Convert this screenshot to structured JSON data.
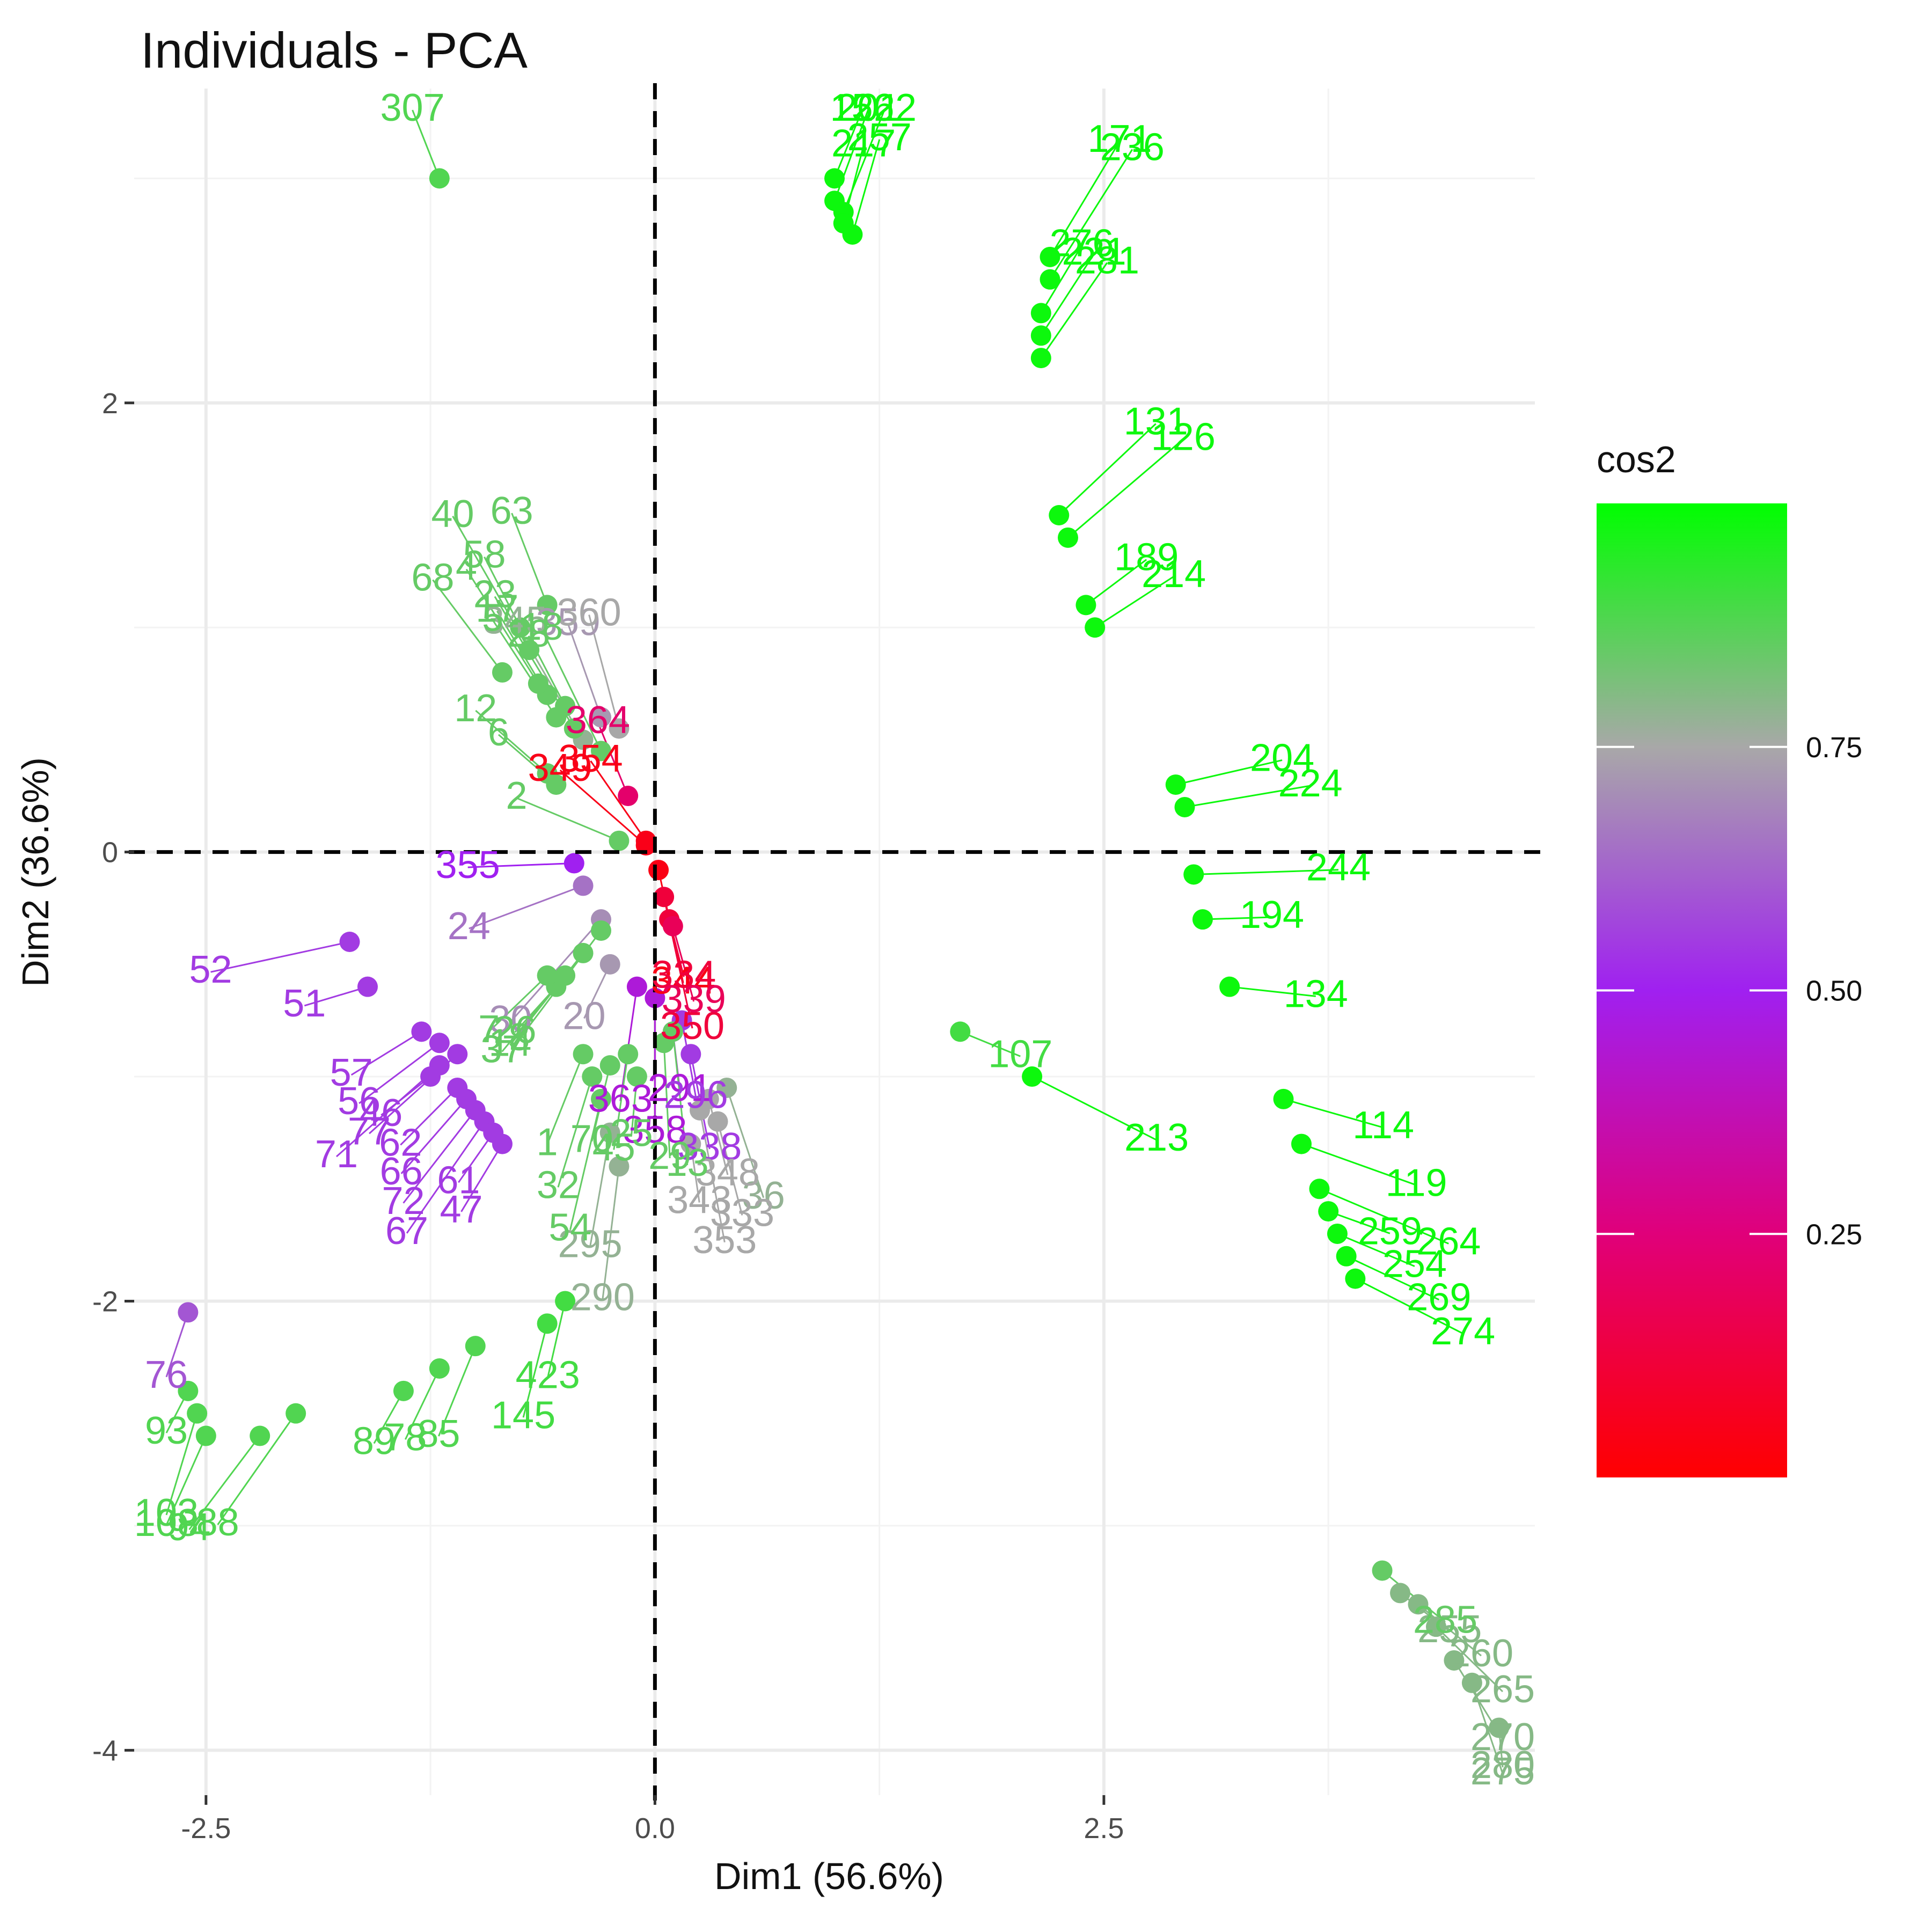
{
  "chart_data": {
    "type": "scatter",
    "title": "Individuals - PCA",
    "xlabel": "Dim1 (56.6%)",
    "ylabel": "Dim2 (36.6%)",
    "xlim": [
      -2.9,
      4.9
    ],
    "ylim": [
      -4.2,
      3.4
    ],
    "xticks": [
      -2.5,
      0.0,
      2.5
    ],
    "xtick_labels": [
      "-2.5",
      "0.0",
      "2.5"
    ],
    "yticks": [
      -4,
      -2,
      0,
      2
    ],
    "ytick_labels": [
      "-4",
      "-2",
      "0",
      "2"
    ],
    "grid": true,
    "reference_lines": {
      "x": 0,
      "y": 0,
      "style": "dashed"
    },
    "legend": {
      "title": "cos2",
      "position": "right",
      "type": "colorbar",
      "range": [
        0,
        1
      ],
      "ticks": [
        0.25,
        0.5,
        0.75
      ],
      "tick_labels": [
        "0.25",
        "0.50",
        "0.75"
      ],
      "colors": {
        "low": "#ff0000",
        "mid": "#a020f0",
        "mid_high": "#a8a8a8",
        "high": "#00ff00"
      }
    },
    "points": [
      {
        "id": "364",
        "x": -0.15,
        "y": 0.25,
        "cos2": 0.22
      },
      {
        "id": "354",
        "x": -0.05,
        "y": 0.05,
        "cos2": 0.05
      },
      {
        "id": "349",
        "x": -0.05,
        "y": 0.03,
        "cos2": 0.05
      },
      {
        "id": "344",
        "x": 0.02,
        "y": -0.08,
        "cos2": 0.04
      },
      {
        "id": "350",
        "x": 0.05,
        "y": -0.2,
        "cos2": 0.12
      },
      {
        "id": "334",
        "x": 0.08,
        "y": -0.3,
        "cos2": 0.12
      },
      {
        "id": "339",
        "x": 0.1,
        "y": -0.33,
        "cos2": 0.18
      },
      {
        "id": "355",
        "x": -0.45,
        "y": -0.05,
        "cos2": 0.5
      },
      {
        "id": "363",
        "x": -0.1,
        "y": -0.6,
        "cos2": 0.45
      },
      {
        "id": "358",
        "x": 0.0,
        "y": -0.65,
        "cos2": 0.45
      },
      {
        "id": "291",
        "x": 0.1,
        "y": -0.8,
        "cos2": 0.45
      },
      {
        "id": "296",
        "x": 0.15,
        "y": -0.75,
        "cos2": 0.55
      },
      {
        "id": "338",
        "x": 0.2,
        "y": -0.9,
        "cos2": 0.55
      },
      {
        "id": "24",
        "x": -0.4,
        "y": -0.15,
        "cos2": 0.65
      },
      {
        "id": "30",
        "x": -0.3,
        "y": -0.3,
        "cos2": 0.7
      },
      {
        "id": "20",
        "x": -0.25,
        "y": -0.5,
        "cos2": 0.72
      },
      {
        "id": "359",
        "x": -0.3,
        "y": 0.6,
        "cos2": 0.72
      },
      {
        "id": "360",
        "x": -0.2,
        "y": 0.55,
        "cos2": 0.75
      },
      {
        "id": "345",
        "x": -0.4,
        "y": 0.5,
        "cos2": 0.78
      },
      {
        "id": "52",
        "x": -1.7,
        "y": -0.4,
        "cos2": 0.55
      },
      {
        "id": "51",
        "x": -1.6,
        "y": -0.6,
        "cos2": 0.55
      },
      {
        "id": "57",
        "x": -1.3,
        "y": -0.8,
        "cos2": 0.55
      },
      {
        "id": "56",
        "x": -1.2,
        "y": -0.85,
        "cos2": 0.55
      },
      {
        "id": "77",
        "x": -1.1,
        "y": -0.9,
        "cos2": 0.55
      },
      {
        "id": "71",
        "x": -1.2,
        "y": -0.95,
        "cos2": 0.55
      },
      {
        "id": "46",
        "x": -1.25,
        "y": -1.0,
        "cos2": 0.55
      },
      {
        "id": "62",
        "x": -1.1,
        "y": -1.05,
        "cos2": 0.55
      },
      {
        "id": "66",
        "x": -1.05,
        "y": -1.1,
        "cos2": 0.55
      },
      {
        "id": "72",
        "x": -1.0,
        "y": -1.15,
        "cos2": 0.55
      },
      {
        "id": "67",
        "x": -0.95,
        "y": -1.2,
        "cos2": 0.55
      },
      {
        "id": "61",
        "x": -0.9,
        "y": -1.25,
        "cos2": 0.55
      },
      {
        "id": "47",
        "x": -0.85,
        "y": -1.3,
        "cos2": 0.55
      },
      {
        "id": "76",
        "x": -2.6,
        "y": -2.05,
        "cos2": 0.6
      },
      {
        "id": "36",
        "x": 0.4,
        "y": -1.05,
        "cos2": 0.78
      },
      {
        "id": "353",
        "x": 0.25,
        "y": -1.15,
        "cos2": 0.75
      },
      {
        "id": "343",
        "x": 0.2,
        "y": -1.3,
        "cos2": 0.75
      },
      {
        "id": "348",
        "x": 0.3,
        "y": -1.1,
        "cos2": 0.75
      },
      {
        "id": "333",
        "x": 0.35,
        "y": -1.2,
        "cos2": 0.75
      },
      {
        "id": "295",
        "x": -0.25,
        "y": -1.25,
        "cos2": 0.78
      },
      {
        "id": "290",
        "x": -0.2,
        "y": -1.4,
        "cos2": 0.78
      },
      {
        "id": "255",
        "x": 4.15,
        "y": -3.3,
        "cos2": 0.8
      },
      {
        "id": "260",
        "x": 4.25,
        "y": -3.35,
        "cos2": 0.8
      },
      {
        "id": "265",
        "x": 4.35,
        "y": -3.45,
        "cos2": 0.8
      },
      {
        "id": "270",
        "x": 4.45,
        "y": -3.6,
        "cos2": 0.8
      },
      {
        "id": "275",
        "x": 4.55,
        "y": -3.7,
        "cos2": 0.8
      },
      {
        "id": "280",
        "x": 4.7,
        "y": -3.9,
        "cos2": 0.8
      },
      {
        "id": "285",
        "x": 4.05,
        "y": -3.2,
        "cos2": 0.85
      },
      {
        "id": "1",
        "x": -0.4,
        "y": -0.9,
        "cos2": 0.85
      },
      {
        "id": "32",
        "x": -0.35,
        "y": -1.0,
        "cos2": 0.85
      },
      {
        "id": "54",
        "x": -0.3,
        "y": -1.1,
        "cos2": 0.85
      },
      {
        "id": "25",
        "x": -0.1,
        "y": -1.0,
        "cos2": 0.85
      },
      {
        "id": "70",
        "x": -0.25,
        "y": -0.95,
        "cos2": 0.85
      },
      {
        "id": "45",
        "x": -0.15,
        "y": -0.9,
        "cos2": 0.85
      },
      {
        "id": "29",
        "x": 0.05,
        "y": -0.85,
        "cos2": 0.85
      },
      {
        "id": "13",
        "x": 0.1,
        "y": -0.8,
        "cos2": 0.85
      },
      {
        "id": "26",
        "x": -0.55,
        "y": -0.6,
        "cos2": 0.85
      },
      {
        "id": "7",
        "x": -0.6,
        "y": -0.55,
        "cos2": 0.85
      },
      {
        "id": "37",
        "x": -0.5,
        "y": -0.55,
        "cos2": 0.85
      },
      {
        "id": "14",
        "x": -0.4,
        "y": -0.45,
        "cos2": 0.85
      },
      {
        "id": "8",
        "x": -0.3,
        "y": -0.35,
        "cos2": 0.85
      },
      {
        "id": "6",
        "x": -0.55,
        "y": 0.3,
        "cos2": 0.85
      },
      {
        "id": "12",
        "x": -0.6,
        "y": 0.35,
        "cos2": 0.85
      },
      {
        "id": "2",
        "x": -0.2,
        "y": 0.05,
        "cos2": 0.85
      },
      {
        "id": "18",
        "x": -0.3,
        "y": 0.45,
        "cos2": 0.85
      },
      {
        "id": "23",
        "x": -0.45,
        "y": 0.55,
        "cos2": 0.85
      },
      {
        "id": "28",
        "x": -0.5,
        "y": 0.65,
        "cos2": 0.85
      },
      {
        "id": "17",
        "x": -0.6,
        "y": 0.7,
        "cos2": 0.85
      },
      {
        "id": "5",
        "x": -0.55,
        "y": 0.6,
        "cos2": 0.85
      },
      {
        "id": "4",
        "x": -0.65,
        "y": 0.75,
        "cos2": 0.85
      },
      {
        "id": "40",
        "x": -0.7,
        "y": 0.9,
        "cos2": 0.85
      },
      {
        "id": "58",
        "x": -0.75,
        "y": 1.0,
        "cos2": 0.85
      },
      {
        "id": "63",
        "x": -0.6,
        "y": 1.1,
        "cos2": 0.85
      },
      {
        "id": "68",
        "x": -0.85,
        "y": 0.8,
        "cos2": 0.85
      },
      {
        "id": "171",
        "x": 2.2,
        "y": 2.65,
        "cos2": 0.98
      },
      {
        "id": "236",
        "x": 2.2,
        "y": 2.55,
        "cos2": 0.98
      },
      {
        "id": "276",
        "x": 2.15,
        "y": 2.4,
        "cos2": 0.98
      },
      {
        "id": "221",
        "x": 2.15,
        "y": 2.3,
        "cos2": 0.98
      },
      {
        "id": "281",
        "x": 2.15,
        "y": 2.2,
        "cos2": 0.98
      },
      {
        "id": "131",
        "x": 2.25,
        "y": 1.5,
        "cos2": 0.98
      },
      {
        "id": "126",
        "x": 2.3,
        "y": 1.4,
        "cos2": 0.98
      },
      {
        "id": "189",
        "x": 2.4,
        "y": 1.1,
        "cos2": 0.98
      },
      {
        "id": "214",
        "x": 2.45,
        "y": 1.0,
        "cos2": 0.98
      },
      {
        "id": "204",
        "x": 2.9,
        "y": 0.3,
        "cos2": 0.98
      },
      {
        "id": "224",
        "x": 2.95,
        "y": 0.2,
        "cos2": 0.98
      },
      {
        "id": "244",
        "x": 3.0,
        "y": -0.1,
        "cos2": 0.98
      },
      {
        "id": "194",
        "x": 3.05,
        "y": -0.3,
        "cos2": 0.98
      },
      {
        "id": "134",
        "x": 3.2,
        "y": -0.6,
        "cos2": 0.98
      },
      {
        "id": "114",
        "x": 3.5,
        "y": -1.1,
        "cos2": 0.98
      },
      {
        "id": "119",
        "x": 3.6,
        "y": -1.3,
        "cos2": 0.98
      },
      {
        "id": "264",
        "x": 3.7,
        "y": -1.5,
        "cos2": 0.98
      },
      {
        "id": "259",
        "x": 3.75,
        "y": -1.6,
        "cos2": 0.98
      },
      {
        "id": "254",
        "x": 3.8,
        "y": -1.7,
        "cos2": 0.98
      },
      {
        "id": "269",
        "x": 3.85,
        "y": -1.8,
        "cos2": 0.98
      },
      {
        "id": "274",
        "x": 3.9,
        "y": -1.9,
        "cos2": 0.98
      },
      {
        "id": "213",
        "x": 2.1,
        "y": -1.0,
        "cos2": 0.98
      },
      {
        "id": "107",
        "x": 1.7,
        "y": -0.8,
        "cos2": 0.9
      },
      {
        "id": "423",
        "x": -0.5,
        "y": -2.0,
        "cos2": 0.9
      },
      {
        "id": "145",
        "x": -0.6,
        "y": -2.1,
        "cos2": 0.9
      },
      {
        "id": "94",
        "x": -2.2,
        "y": -2.6,
        "cos2": 0.88
      },
      {
        "id": "88",
        "x": -2.0,
        "y": -2.5,
        "cos2": 0.88
      },
      {
        "id": "89",
        "x": -1.4,
        "y": -2.4,
        "cos2": 0.88
      },
      {
        "id": "78",
        "x": -1.2,
        "y": -2.3,
        "cos2": 0.88
      },
      {
        "id": "85",
        "x": -1.0,
        "y": -2.2,
        "cos2": 0.88
      },
      {
        "id": "108",
        "x": -2.5,
        "y": -2.6,
        "cos2": 0.88
      },
      {
        "id": "103",
        "x": -2.55,
        "y": -2.5,
        "cos2": 0.88
      },
      {
        "id": "93",
        "x": -2.6,
        "y": -2.4,
        "cos2": 0.88
      },
      {
        "id": "307",
        "x": -1.2,
        "y": 3.0,
        "cos2": 0.88
      },
      {
        "id": "156",
        "x": 1.0,
        "y": 3.0,
        "cos2": 0.98
      },
      {
        "id": "201",
        "x": 1.0,
        "y": 2.9,
        "cos2": 0.98
      },
      {
        "id": "222",
        "x": 1.05,
        "y": 2.85,
        "cos2": 0.98
      },
      {
        "id": "217",
        "x": 1.05,
        "y": 2.8,
        "cos2": 0.98
      },
      {
        "id": "257",
        "x": 1.1,
        "y": 2.75,
        "cos2": 0.98
      }
    ]
  }
}
